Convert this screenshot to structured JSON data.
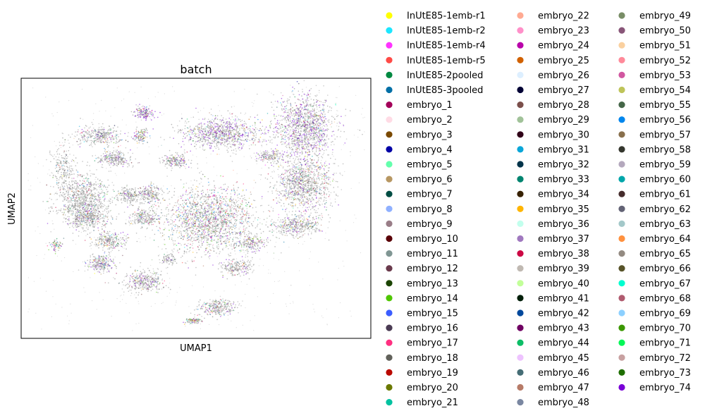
{
  "chart_data": {
    "type": "scatter",
    "title": "batch",
    "xlabel": "UMAP1",
    "ylabel": "UMAP2",
    "grid": false,
    "legend_position": "right",
    "legend": [
      {
        "name": "InUtE85-1emb-r1",
        "color": "#ffff00"
      },
      {
        "name": "InUtE85-1emb-r2",
        "color": "#1ce6ff"
      },
      {
        "name": "InUtE85-1emb-r4",
        "color": "#ff34ff"
      },
      {
        "name": "InUtE85-1emb-r5",
        "color": "#ff4a46"
      },
      {
        "name": "InUtE85-2pooled",
        "color": "#008941"
      },
      {
        "name": "InUtE85-3pooled",
        "color": "#006fa6"
      },
      {
        "name": "embryo_1",
        "color": "#a30059"
      },
      {
        "name": "embryo_2",
        "color": "#ffdbe5"
      },
      {
        "name": "embryo_3",
        "color": "#7a4900"
      },
      {
        "name": "embryo_4",
        "color": "#0000a6"
      },
      {
        "name": "embryo_5",
        "color": "#63ffac"
      },
      {
        "name": "embryo_6",
        "color": "#b79762"
      },
      {
        "name": "embryo_7",
        "color": "#004d43"
      },
      {
        "name": "embryo_8",
        "color": "#8fb0ff"
      },
      {
        "name": "embryo_9",
        "color": "#997d87"
      },
      {
        "name": "embryo_10",
        "color": "#5a0007"
      },
      {
        "name": "embryo_11",
        "color": "#809693"
      },
      {
        "name": "embryo_12",
        "color": "#6a3a4c"
      },
      {
        "name": "embryo_13",
        "color": "#1b4400"
      },
      {
        "name": "embryo_14",
        "color": "#4fc601"
      },
      {
        "name": "embryo_15",
        "color": "#3b5dff"
      },
      {
        "name": "embryo_16",
        "color": "#4a3b53"
      },
      {
        "name": "embryo_17",
        "color": "#ff2f80"
      },
      {
        "name": "embryo_18",
        "color": "#61615a"
      },
      {
        "name": "embryo_19",
        "color": "#ba0900"
      },
      {
        "name": "embryo_20",
        "color": "#6b7900"
      },
      {
        "name": "embryo_21",
        "color": "#00c2a0"
      },
      {
        "name": "embryo_22",
        "color": "#ffaa92"
      },
      {
        "name": "embryo_23",
        "color": "#ff90c9"
      },
      {
        "name": "embryo_24",
        "color": "#b903aa"
      },
      {
        "name": "embryo_25",
        "color": "#d16100"
      },
      {
        "name": "embryo_26",
        "color": "#ddefff"
      },
      {
        "name": "embryo_27",
        "color": "#000035"
      },
      {
        "name": "embryo_28",
        "color": "#7b4f4b"
      },
      {
        "name": "embryo_29",
        "color": "#a1c299"
      },
      {
        "name": "embryo_30",
        "color": "#300018"
      },
      {
        "name": "embryo_31",
        "color": "#0aa6d8"
      },
      {
        "name": "embryo_32",
        "color": "#013349"
      },
      {
        "name": "embryo_33",
        "color": "#00846f"
      },
      {
        "name": "embryo_34",
        "color": "#372101"
      },
      {
        "name": "embryo_35",
        "color": "#ffb500"
      },
      {
        "name": "embryo_36",
        "color": "#c2ffed"
      },
      {
        "name": "embryo_37",
        "color": "#a079bf"
      },
      {
        "name": "embryo_38",
        "color": "#cc0744"
      },
      {
        "name": "embryo_39",
        "color": "#c0b9b2"
      },
      {
        "name": "embryo_40",
        "color": "#c2ff99"
      },
      {
        "name": "embryo_41",
        "color": "#001e09"
      },
      {
        "name": "embryo_42",
        "color": "#00489c"
      },
      {
        "name": "embryo_43",
        "color": "#6f0062"
      },
      {
        "name": "embryo_44",
        "color": "#0cbd66"
      },
      {
        "name": "embryo_45",
        "color": "#eec3ff"
      },
      {
        "name": "embryo_46",
        "color": "#456d75"
      },
      {
        "name": "embryo_47",
        "color": "#b77b68"
      },
      {
        "name": "embryo_48",
        "color": "#7a87a1"
      },
      {
        "name": "embryo_49",
        "color": "#788d66"
      },
      {
        "name": "embryo_50",
        "color": "#885578"
      },
      {
        "name": "embryo_51",
        "color": "#fad09f"
      },
      {
        "name": "embryo_52",
        "color": "#ff8a9a"
      },
      {
        "name": "embryo_53",
        "color": "#d157a0"
      },
      {
        "name": "embryo_54",
        "color": "#bec459"
      },
      {
        "name": "embryo_55",
        "color": "#456648"
      },
      {
        "name": "embryo_56",
        "color": "#0086ed"
      },
      {
        "name": "embryo_57",
        "color": "#886f4c"
      },
      {
        "name": "embryo_58",
        "color": "#34362d"
      },
      {
        "name": "embryo_59",
        "color": "#b4a8bd"
      },
      {
        "name": "embryo_60",
        "color": "#00a6aa"
      },
      {
        "name": "embryo_61",
        "color": "#452c2c"
      },
      {
        "name": "embryo_62",
        "color": "#636375"
      },
      {
        "name": "embryo_63",
        "color": "#a3c8c9"
      },
      {
        "name": "embryo_64",
        "color": "#ff913f"
      },
      {
        "name": "embryo_65",
        "color": "#938a81"
      },
      {
        "name": "embryo_66",
        "color": "#575329"
      },
      {
        "name": "embryo_67",
        "color": "#00fecf"
      },
      {
        "name": "embryo_68",
        "color": "#b05b6f"
      },
      {
        "name": "embryo_69",
        "color": "#8cd0ff"
      },
      {
        "name": "embryo_70",
        "color": "#3b9700"
      },
      {
        "name": "embryo_71",
        "color": "#04f757"
      },
      {
        "name": "embryo_72",
        "color": "#c8a1a1"
      },
      {
        "name": "embryo_73",
        "color": "#1e6e00"
      },
      {
        "name": "embryo_74",
        "color": "#7900d7"
      }
    ]
  }
}
